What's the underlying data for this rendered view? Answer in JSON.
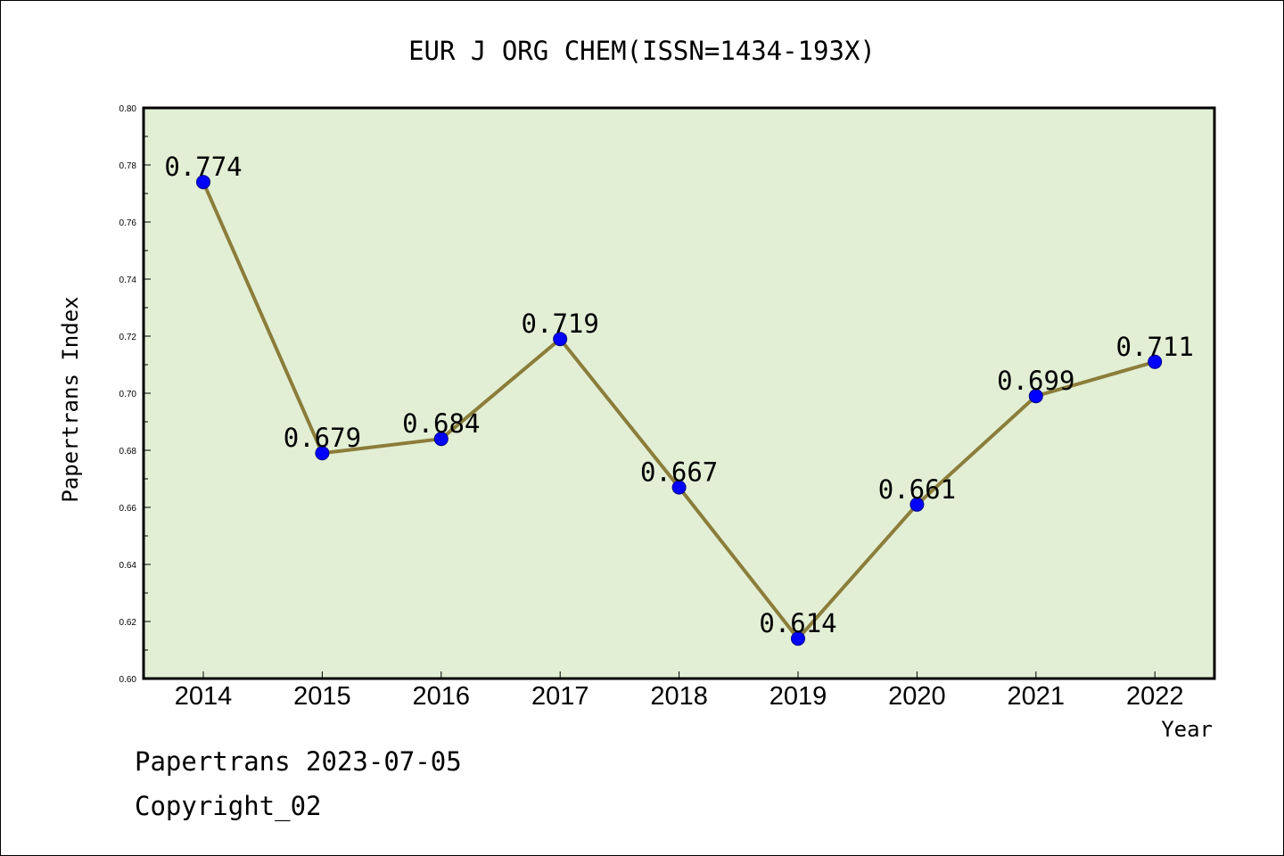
{
  "chart_data": {
    "type": "line",
    "title": "EUR J ORG CHEM(ISSN=1434-193X)",
    "xlabel": "Year",
    "ylabel": "Papertrans Index",
    "categories": [
      "2014",
      "2015",
      "2016",
      "2017",
      "2018",
      "2019",
      "2020",
      "2021",
      "2022"
    ],
    "series": [
      {
        "values": [
          0.774,
          0.679,
          0.684,
          0.719,
          0.667,
          0.614,
          0.661,
          0.699,
          0.711
        ]
      }
    ],
    "data_labels": [
      "0.774",
      "0.679",
      "0.684",
      "0.719",
      "0.667",
      "0.614",
      "0.661",
      "0.699",
      "0.711"
    ],
    "ylim": [
      0.6,
      0.8
    ],
    "yticks": [
      "0.60",
      "0.62",
      "0.64",
      "0.66",
      "0.68",
      "0.70",
      "0.72",
      "0.74",
      "0.76",
      "0.78",
      "0.80"
    ],
    "grid": false,
    "legend": "none",
    "colors": {
      "plot_background": "#e2efd5",
      "line": "#8b7d3a",
      "marker": "#0000ff",
      "marker_edge": "#00008b"
    }
  },
  "footer": {
    "date_line": "Papertrans 2023-07-05",
    "copyright_line": "Copyright_02"
  }
}
